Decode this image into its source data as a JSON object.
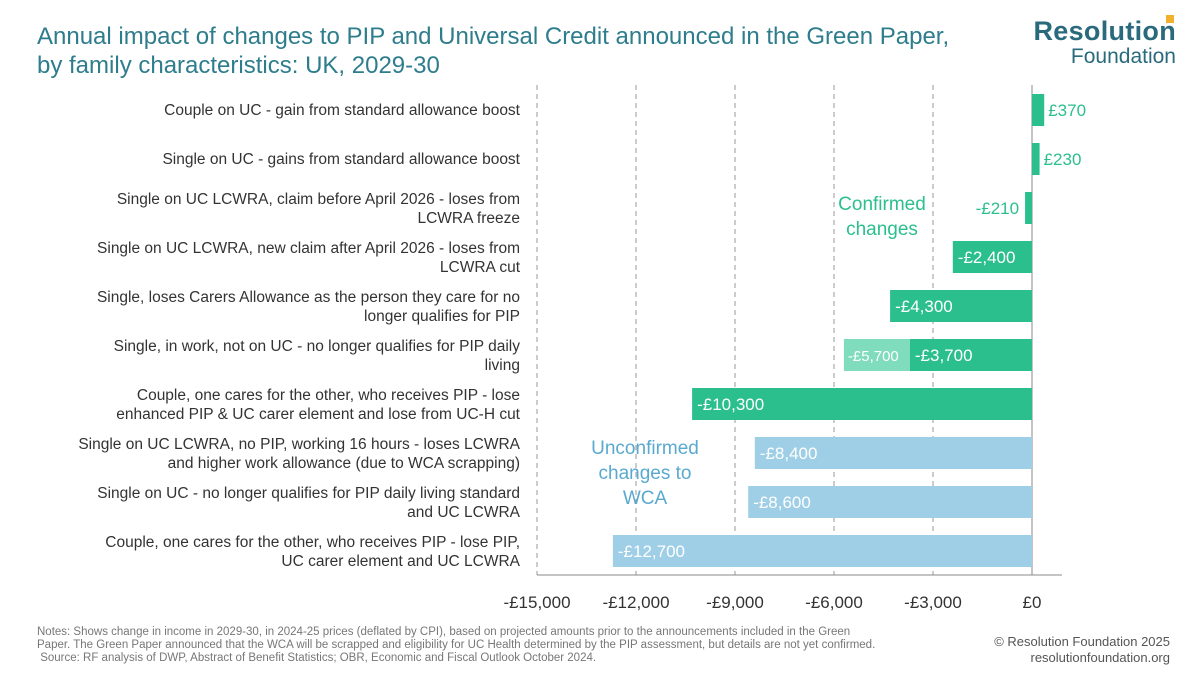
{
  "header": {
    "title_line1": "Annual impact of changes to PIP and Universal Credit announced in the Green Paper,",
    "title_line2": "by family characteristics: UK, 2029-30"
  },
  "logo": {
    "line1": "Resolution",
    "line2": "Foundation"
  },
  "footer": {
    "notes_line1": "Notes: Shows change in income in 2029-30, in 2024-25 prices (deflated by CPI), based on projected amounts prior to the announcements included in the Green",
    "notes_line2": "Paper. The Green Paper announced that the WCA will be scrapped and eligibility for UC Health determined by the PIP assessment, but details are not yet confirmed.",
    "notes_line3": " Source: RF analysis of DWP, Abstract of Benefit Statistics; OBR, Economic and Fiscal Outlook October 2024.",
    "copyright": "© Resolution Foundation 2025",
    "website": "resolutionfoundation.org"
  },
  "chart_data": {
    "type": "bar",
    "orientation": "horizontal",
    "title": "Annual impact of changes to PIP and Universal Credit announced in the Green Paper, by family characteristics: UK, 2029-30",
    "xlim": [
      -15000,
      0
    ],
    "x_ticks": [
      -15000,
      -12000,
      -9000,
      -6000,
      -3000,
      0
    ],
    "x_tick_labels": [
      "-£15,000",
      "-£12,000",
      "-£9,000",
      "-£6,000",
      "-£3,000",
      "£0"
    ],
    "grid": "vertical dashed",
    "colors": {
      "confirmed": "#2bbf8e",
      "confirmed_label": "#2bbf8e",
      "unconfirmed": "#9fcfe6",
      "unconfirmed_label": "#5aa9cf",
      "partial_light": "#7fdcbc",
      "bar_text_light": "#ffffff"
    },
    "annotations": [
      {
        "text_line1": "Confirmed",
        "text_line2": "changes",
        "series": "confirmed"
      },
      {
        "text_line1": "Unconfirmed",
        "text_line2": "changes to",
        "text_line3": "WCA",
        "series": "unconfirmed"
      }
    ],
    "rows": [
      {
        "label_line1": "Couple on UC - gain from standard allowance boost",
        "label_line2": "",
        "value": 370,
        "value_label": "£370",
        "series": "confirmed"
      },
      {
        "label_line1": "Single on UC - gains from standard allowance boost",
        "label_line2": "",
        "value": 230,
        "value_label": "£230",
        "series": "confirmed"
      },
      {
        "label_line1": "Single on UC LCWRA, claim before April 2026 - loses from",
        "label_line2": "LCWRA freeze",
        "value": -210,
        "value_label": "-£210",
        "series": "confirmed"
      },
      {
        "label_line1": "Single on UC LCWRA, new claim after April 2026 - loses from",
        "label_line2": "LCWRA cut",
        "value": -2400,
        "value_label": "-£2,400",
        "series": "confirmed"
      },
      {
        "label_line1": "Single, loses Carers Allowance as the person they care for no",
        "label_line2": "longer qualifies for PIP",
        "value": -4300,
        "value_label": "-£4,300",
        "series": "confirmed"
      },
      {
        "label_line1": "Single, in work, not on UC - no longer qualifies for PIP daily",
        "label_line2": "living",
        "value": -3700,
        "value_label": "-£3,700",
        "series": "confirmed",
        "extended_value": -5700,
        "extended_label": "-£5,700"
      },
      {
        "label_line1": "Couple, one cares for the other, who receives PIP - lose",
        "label_line2": "enhanced PIP & UC carer element and lose from UC-H cut",
        "value": -10300,
        "value_label": "-£10,300",
        "series": "confirmed"
      },
      {
        "label_line1": "Single on UC LCWRA, no PIP, working 16 hours - loses LCWRA",
        "label_line2": "and higher work allowance (due to WCA scrapping)",
        "value": -8400,
        "value_label": "-£8,400",
        "series": "unconfirmed"
      },
      {
        "label_line1": "Single on UC - no longer qualifies for PIP daily living standard",
        "label_line2": "and UC LCWRA",
        "value": -8600,
        "value_label": "-£8,600",
        "series": "unconfirmed"
      },
      {
        "label_line1": "Couple, one cares for the other, who receives PIP - lose PIP,",
        "label_line2": "UC carer element and UC LCWRA",
        "value": -12700,
        "value_label": "-£12,700",
        "series": "unconfirmed"
      }
    ]
  }
}
